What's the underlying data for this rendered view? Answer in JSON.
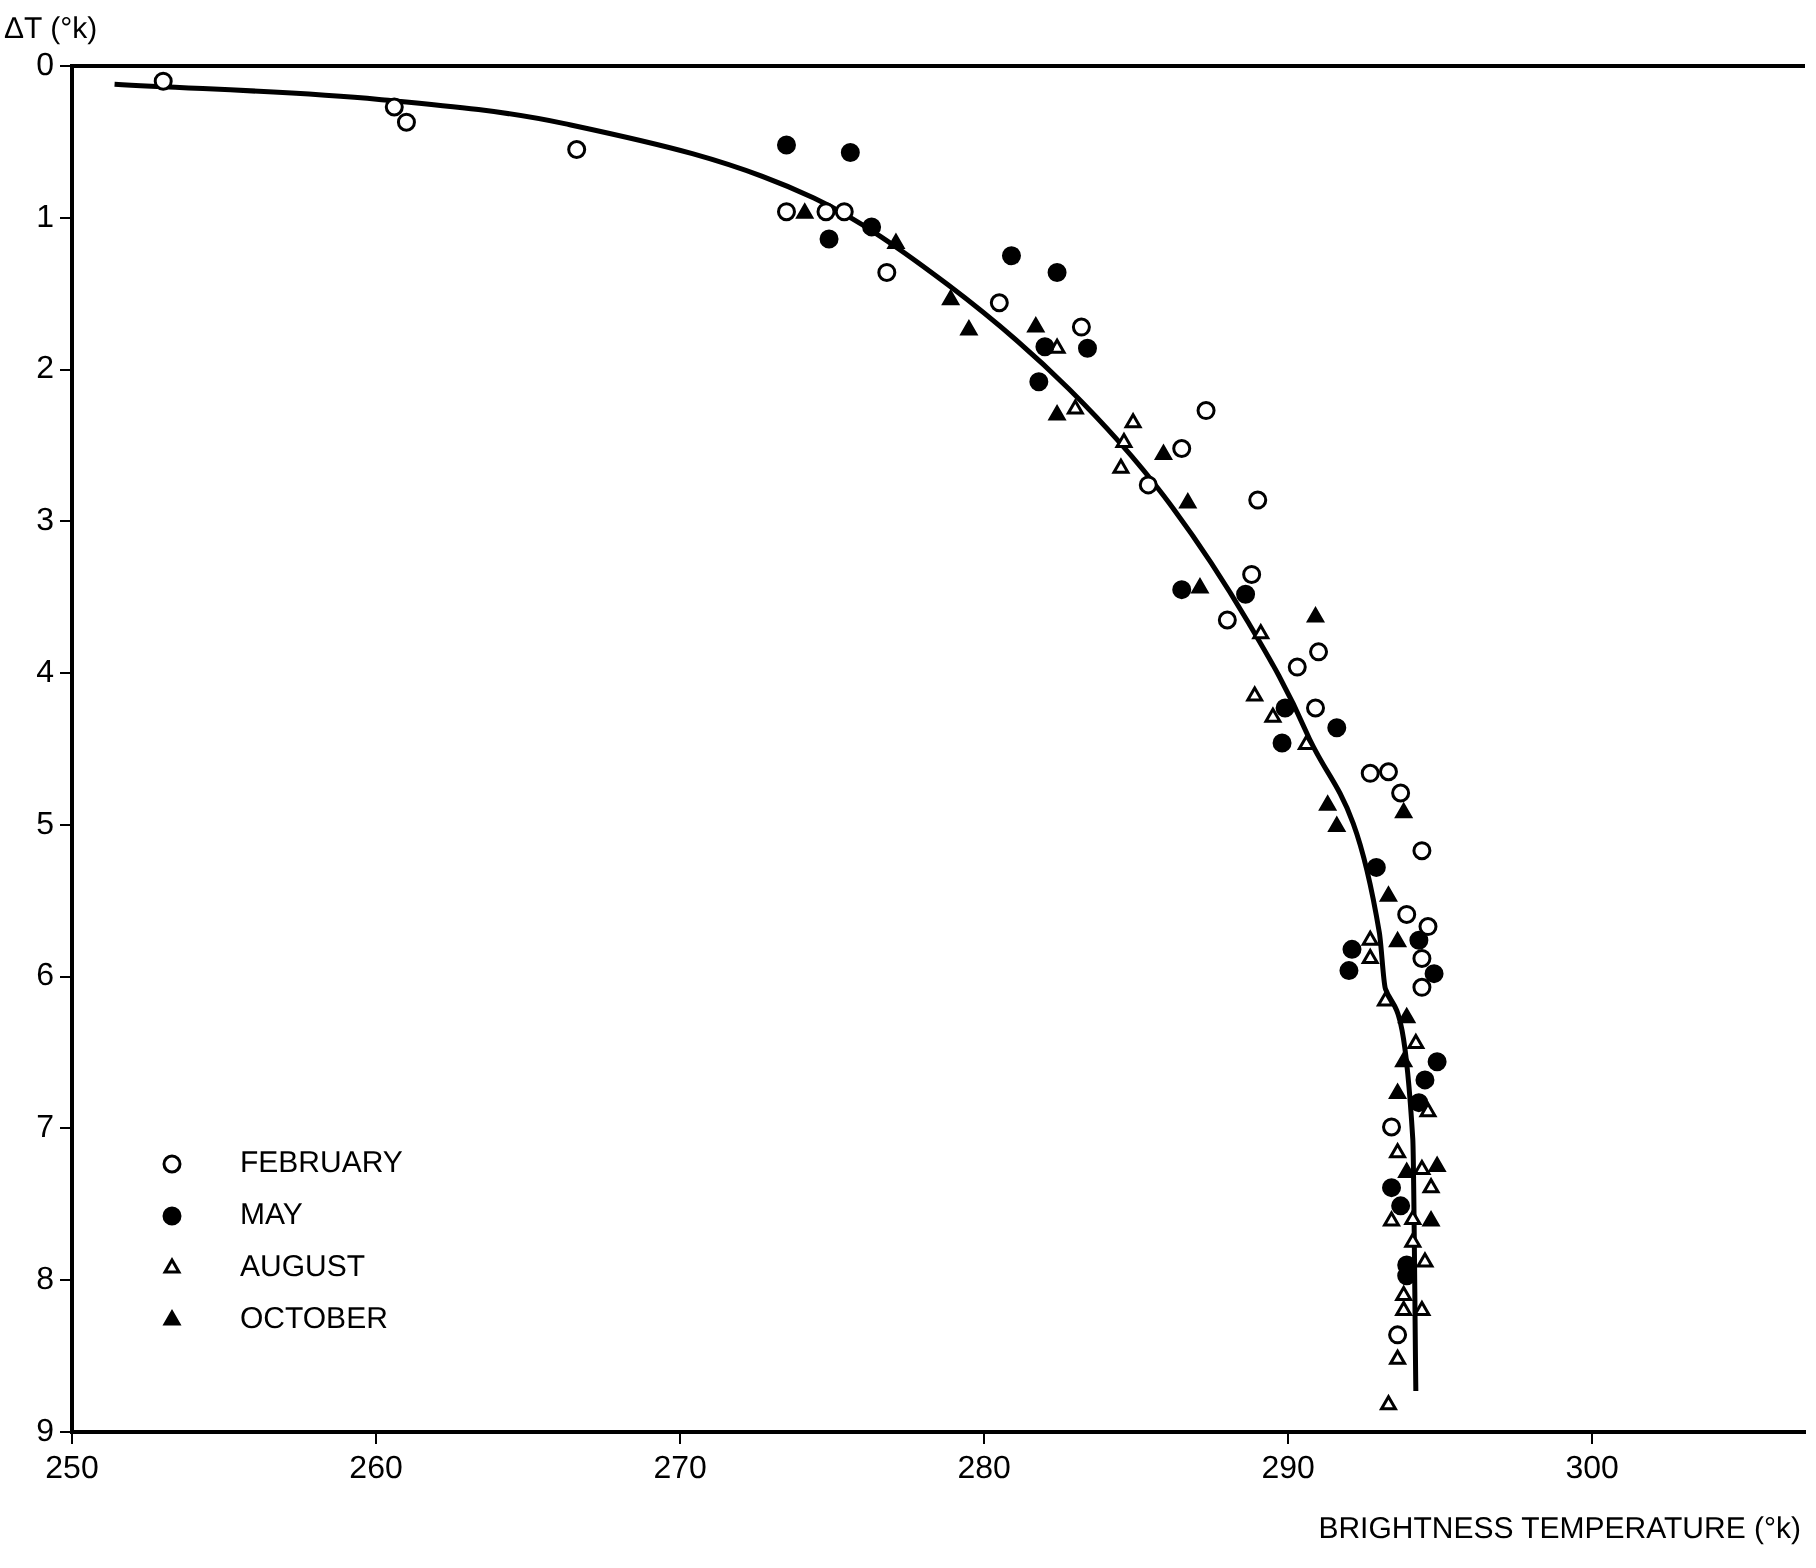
{
  "chart_data": {
    "type": "scatter",
    "xlabel": "BRIGHTNESS TEMPERATURE (°k)",
    "ylabel": "ΔT (°k)",
    "xlim": [
      250,
      307
    ],
    "xticks": [
      250,
      260,
      270,
      280,
      290,
      300
    ],
    "ylim": [
      9,
      0
    ],
    "yticks": [
      0,
      1,
      2,
      3,
      4,
      5,
      6,
      7,
      8,
      9
    ],
    "grid": false,
    "legend": "bottom left",
    "series": [
      {
        "name": "FEBRUARY",
        "color": "#ffffff",
        "marker": "circle",
        "x": [
          253.0,
          260.6,
          261.0,
          266.6,
          273.5,
          274.8,
          275.4,
          276.8,
          280.5,
          283.2,
          287.3,
          285.4,
          289.0,
          286.5,
          288.8,
          288.0,
          291.0,
          290.3,
          290.9,
          292.7,
          293.3,
          293.7,
          294.4,
          293.9,
          294.6,
          294.4,
          294.4,
          293.4,
          293.6
        ],
        "values": [
          0.1,
          0.27,
          0.37,
          0.55,
          0.96,
          0.96,
          0.96,
          1.36,
          1.56,
          1.72,
          2.27,
          2.76,
          2.86,
          2.52,
          3.35,
          3.65,
          3.86,
          3.96,
          4.23,
          4.66,
          4.65,
          4.79,
          5.17,
          5.59,
          5.67,
          5.88,
          6.07,
          6.99,
          8.36
        ]
      },
      {
        "name": "MAY",
        "color": "#000000",
        "marker": "circle",
        "x": [
          273.5,
          275.6,
          274.9,
          276.3,
          280.9,
          282.4,
          282.0,
          283.4,
          281.8,
          286.5,
          288.6,
          289.9,
          291.6,
          289.8,
          292.9,
          294.3,
          292.1,
          292.0,
          294.8,
          294.9,
          294.5,
          294.3,
          293.4,
          293.7,
          293.9,
          293.9
        ],
        "values": [
          0.52,
          0.57,
          1.14,
          1.06,
          1.25,
          1.36,
          1.85,
          1.86,
          2.08,
          3.45,
          3.48,
          4.23,
          4.36,
          4.46,
          5.28,
          5.76,
          5.82,
          5.96,
          5.98,
          6.56,
          6.68,
          6.83,
          7.39,
          7.51,
          7.9,
          7.97
        ]
      },
      {
        "name": "AUGUST",
        "color": "#ffffff",
        "marker": "triangle",
        "x": [
          282.4,
          283.0,
          284.9,
          284.6,
          284.5,
          289.1,
          288.9,
          289.5,
          290.6,
          292.7,
          292.7,
          293.2,
          294.2,
          294.6,
          293.6,
          294.4,
          294.7,
          293.4,
          294.1,
          294.1,
          294.5,
          293.8,
          293.8,
          294.4,
          293.6,
          293.3
        ],
        "values": [
          1.86,
          2.26,
          2.35,
          2.48,
          2.65,
          3.74,
          4.15,
          4.29,
          4.47,
          5.76,
          5.88,
          6.16,
          6.44,
          6.89,
          7.16,
          7.27,
          7.39,
          7.61,
          7.6,
          7.75,
          7.88,
          8.1,
          8.2,
          8.2,
          8.52,
          8.82
        ]
      },
      {
        "name": "OCTOBER",
        "color": "#000000",
        "marker": "triangle",
        "x": [
          274.1,
          277.1,
          278.9,
          279.5,
          281.7,
          282.4,
          285.9,
          286.7,
          287.1,
          290.9,
          293.8,
          291.3,
          291.6,
          293.3,
          293.6,
          293.9,
          293.8,
          293.6,
          293.9,
          294.9,
          294.7
        ],
        "values": [
          0.97,
          1.17,
          1.54,
          1.74,
          1.72,
          2.3,
          2.56,
          2.88,
          3.44,
          3.63,
          4.92,
          4.87,
          5.01,
          5.47,
          5.77,
          6.27,
          6.56,
          6.77,
          7.29,
          7.25,
          7.61
        ]
      },
      {
        "type": "line",
        "color": "#000000",
        "line_style": "solid",
        "marker": "none",
        "x": [
          251.4,
          260.1,
          266.2,
          274.4,
          278.8,
          282.8,
          285.9,
          288.7,
          290.6,
          293.0,
          293.2,
          294.1,
          294.2
        ],
        "values": [
          0.12,
          0.22,
          0.38,
          0.87,
          1.44,
          2.13,
          2.83,
          3.67,
          4.39,
          5.71,
          6.08,
          7.07,
          8.73
        ]
      }
    ]
  }
}
